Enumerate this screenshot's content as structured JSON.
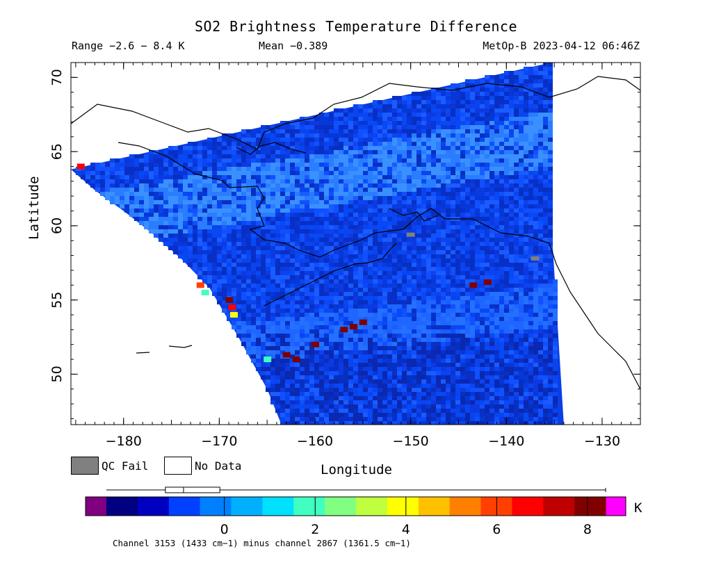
{
  "header": {
    "title": "SO2 Brightness Temperature Difference",
    "range": "Range −2.6 − 8.4 K",
    "mean": "Mean −0.389",
    "satellite_time": "MetOp-B 2023-04-12 06:46Z"
  },
  "legend": {
    "qc_fail": "QC Fail",
    "no_data": "No Data"
  },
  "colorbar": {
    "unit": "K",
    "footer": "Channel 3153 (1433 cm−1) minus channel 2867 (1361.5 cm−1)",
    "ticks": [
      {
        "value": 0,
        "label": "0"
      },
      {
        "value": 2,
        "label": "2"
      },
      {
        "value": 4,
        "label": "4"
      },
      {
        "value": 6,
        "label": "6"
      },
      {
        "value": 8,
        "label": "8"
      }
    ],
    "min": -2.6,
    "max": 8.4,
    "colors": [
      "#800080",
      "#000080",
      "#0000c0",
      "#0040ff",
      "#0080ff",
      "#00b0ff",
      "#00e0ff",
      "#40ffc0",
      "#80ff80",
      "#c0ff40",
      "#ffff00",
      "#ffc000",
      "#ff8000",
      "#ff4000",
      "#ff0000",
      "#c00000",
      "#800000",
      "#ff00ff"
    ],
    "quartiles": {
      "min": -2.6,
      "q1": -1.3,
      "median": -0.9,
      "q3": -0.1,
      "max": 8.4
    }
  },
  "chart_data": {
    "type": "heatmap",
    "title": "SO2 Brightness Temperature Difference",
    "xlabel": "Longitude",
    "ylabel": "Latitude",
    "xlim": [
      -185.5,
      -126
    ],
    "ylim": [
      46.6,
      71
    ],
    "xticks": [
      -180,
      -170,
      -160,
      -150,
      -140,
      -130
    ],
    "yticks": [
      50,
      55,
      60,
      65,
      70
    ],
    "unit": "K",
    "value_range": [
      -2.6,
      8.4
    ],
    "mean": -0.389,
    "colors": {
      "qc_fail": "#808080",
      "no_data": "#ffffff"
    },
    "swath": {
      "lon": [
        -185.5,
        -183,
        -180,
        -177,
        -174,
        -171,
        -168,
        -165,
        -163.5,
        -134,
        -135.2,
        -135.3
      ],
      "lat": [
        63.8,
        62.4,
        61,
        59.5,
        57.8,
        55.8,
        52.5,
        49,
        46.6,
        46.6,
        59,
        71
      ]
    },
    "hotspots": [
      {
        "lon": -172,
        "lat": 56,
        "value": 6
      },
      {
        "lon": -171.5,
        "lat": 55.5,
        "value": 2
      },
      {
        "lon": -169,
        "lat": 55,
        "value": 8.2
      },
      {
        "lon": -168.7,
        "lat": 54.5,
        "value": 6.5
      },
      {
        "lon": -168.5,
        "lat": 54,
        "value": 4
      },
      {
        "lon": -165,
        "lat": 51,
        "value": 2
      },
      {
        "lon": -163,
        "lat": 51.3,
        "value": 8.4
      },
      {
        "lon": -162,
        "lat": 51,
        "value": 8.3
      },
      {
        "lon": -160,
        "lat": 52,
        "value": 8
      },
      {
        "lon": -157,
        "lat": 53,
        "value": 8.2
      },
      {
        "lon": -156,
        "lat": 53.2,
        "value": 8.1
      },
      {
        "lon": -155,
        "lat": 53.5,
        "value": 7.9
      },
      {
        "lon": -143.5,
        "lat": 56,
        "value": 7.9
      },
      {
        "lon": -142,
        "lat": 56.2,
        "value": 7.8
      },
      {
        "lon": -184.5,
        "lat": 64,
        "value": 7
      }
    ],
    "qc_fail_points": [
      {
        "lon": -150,
        "lat": 59.4
      },
      {
        "lon": -137,
        "lat": 57.8
      }
    ]
  }
}
